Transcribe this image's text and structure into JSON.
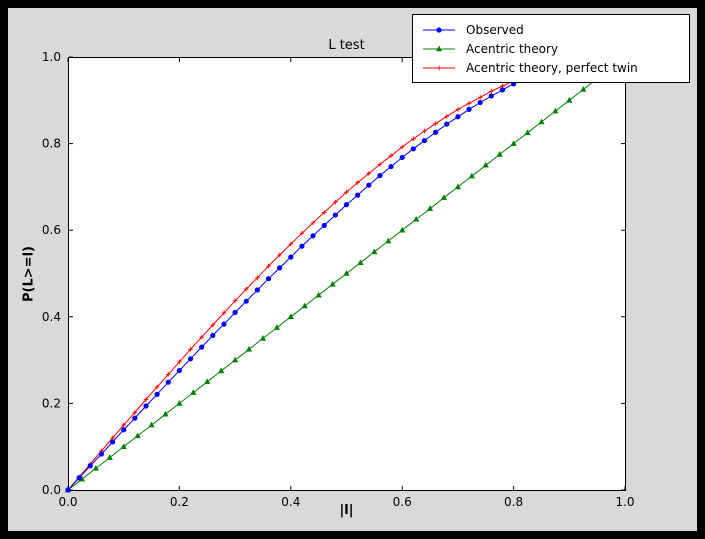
{
  "figure": {
    "outer_background": "#000000",
    "figure_facecolor": "#d9d9d9",
    "axes_facecolor": "#ffffff"
  },
  "chart_data": {
    "type": "line",
    "title": "L test",
    "xlabel": "|l|",
    "ylabel": "P(L>=l)",
    "xlim": [
      0.0,
      1.0
    ],
    "ylim": [
      0.0,
      1.0
    ],
    "xticks": [
      0.0,
      0.2,
      0.4,
      0.6,
      0.8,
      1.0
    ],
    "yticks": [
      0.0,
      0.2,
      0.4,
      0.6,
      0.8,
      1.0
    ],
    "grid": false,
    "legend_position": "upper right",
    "series": [
      {
        "name": "Observed",
        "color": "#0000ff",
        "marker": "circle",
        "x": [
          0.0,
          0.02,
          0.04,
          0.06,
          0.08,
          0.1,
          0.12,
          0.14,
          0.16,
          0.18,
          0.2,
          0.22,
          0.24,
          0.26,
          0.28,
          0.3,
          0.32,
          0.34,
          0.36,
          0.38,
          0.4,
          0.42,
          0.44,
          0.46,
          0.48,
          0.5,
          0.52,
          0.54,
          0.56,
          0.58,
          0.6,
          0.62,
          0.64,
          0.66,
          0.68,
          0.7,
          0.72,
          0.74,
          0.76,
          0.78,
          0.8,
          0.82,
          0.84,
          0.86
        ],
        "y": [
          0.0,
          0.028,
          0.056,
          0.083,
          0.111,
          0.139,
          0.166,
          0.194,
          0.221,
          0.249,
          0.276,
          0.303,
          0.33,
          0.357,
          0.383,
          0.41,
          0.436,
          0.462,
          0.488,
          0.513,
          0.538,
          0.563,
          0.587,
          0.611,
          0.635,
          0.659,
          0.681,
          0.704,
          0.726,
          0.747,
          0.768,
          0.788,
          0.807,
          0.826,
          0.845,
          0.862,
          0.879,
          0.895,
          0.91,
          0.924,
          0.938,
          0.95,
          0.961,
          0.966
        ]
      },
      {
        "name": "Acentric theory",
        "color": "#008000",
        "marker": "triangle",
        "x": [
          0.0,
          0.025,
          0.05,
          0.075,
          0.1,
          0.125,
          0.15,
          0.175,
          0.2,
          0.225,
          0.25,
          0.275,
          0.3,
          0.325,
          0.35,
          0.375,
          0.4,
          0.425,
          0.45,
          0.475,
          0.5,
          0.525,
          0.55,
          0.575,
          0.6,
          0.625,
          0.65,
          0.675,
          0.7,
          0.725,
          0.75,
          0.775,
          0.8,
          0.825,
          0.85,
          0.875,
          0.9,
          0.925,
          0.95,
          0.975
        ],
        "y": [
          0.0,
          0.025,
          0.05,
          0.075,
          0.1,
          0.125,
          0.15,
          0.175,
          0.2,
          0.225,
          0.25,
          0.275,
          0.3,
          0.325,
          0.35,
          0.375,
          0.4,
          0.425,
          0.45,
          0.475,
          0.5,
          0.525,
          0.55,
          0.575,
          0.6,
          0.625,
          0.65,
          0.675,
          0.7,
          0.725,
          0.75,
          0.775,
          0.8,
          0.825,
          0.85,
          0.875,
          0.9,
          0.925,
          0.95,
          0.975
        ]
      },
      {
        "name": "Acentric theory, perfect twin",
        "color": "#ff0000",
        "marker": "plus",
        "x": [
          0.0,
          0.02,
          0.04,
          0.06,
          0.08,
          0.1,
          0.12,
          0.14,
          0.16,
          0.18,
          0.2,
          0.22,
          0.24,
          0.26,
          0.28,
          0.3,
          0.32,
          0.34,
          0.36,
          0.38,
          0.4,
          0.42,
          0.44,
          0.46,
          0.48,
          0.5,
          0.52,
          0.54,
          0.56,
          0.58,
          0.6,
          0.62,
          0.64,
          0.66,
          0.68,
          0.7,
          0.72,
          0.74,
          0.76,
          0.78,
          0.8,
          0.82,
          0.84,
          0.86
        ],
        "y": [
          0.0,
          0.03,
          0.06,
          0.09,
          0.12,
          0.15,
          0.179,
          0.209,
          0.238,
          0.267,
          0.296,
          0.325,
          0.353,
          0.381,
          0.409,
          0.437,
          0.464,
          0.49,
          0.517,
          0.543,
          0.568,
          0.593,
          0.617,
          0.641,
          0.665,
          0.688,
          0.71,
          0.731,
          0.752,
          0.772,
          0.792,
          0.811,
          0.829,
          0.846,
          0.863,
          0.879,
          0.893,
          0.907,
          0.921,
          0.933,
          0.944,
          0.954,
          0.964,
          0.972
        ]
      }
    ]
  }
}
